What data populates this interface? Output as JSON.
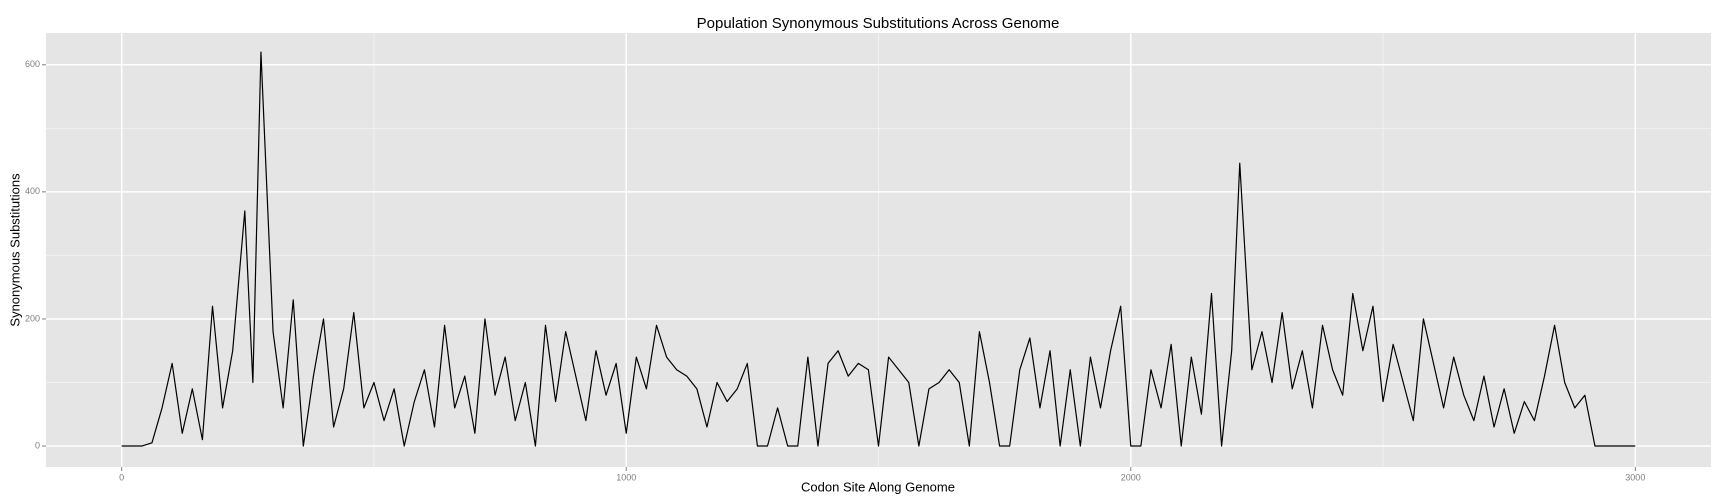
{
  "chart_data": {
    "type": "line",
    "title": "Population Synonymous Substitutions Across Genome",
    "x_label": "Codon Site Along Genome",
    "y_label": "Synonymous Substitutions",
    "x": [
      0,
      20,
      40,
      60,
      80,
      100,
      120,
      140,
      160,
      180,
      200,
      220,
      244,
      260,
      276,
      300,
      320,
      340,
      360,
      380,
      400,
      420,
      440,
      460,
      480,
      500,
      520,
      540,
      560,
      580,
      600,
      620,
      640,
      660,
      680,
      700,
      720,
      740,
      760,
      780,
      800,
      820,
      840,
      860,
      880,
      900,
      920,
      940,
      960,
      980,
      1000,
      1020,
      1040,
      1060,
      1080,
      1100,
      1120,
      1140,
      1160,
      1180,
      1200,
      1220,
      1240,
      1260,
      1280,
      1300,
      1320,
      1340,
      1360,
      1380,
      1400,
      1420,
      1440,
      1460,
      1480,
      1500,
      1520,
      1540,
      1560,
      1580,
      1600,
      1620,
      1640,
      1660,
      1680,
      1700,
      1720,
      1740,
      1760,
      1780,
      1800,
      1820,
      1840,
      1860,
      1880,
      1900,
      1920,
      1940,
      1960,
      1980,
      2000,
      2020,
      2040,
      2060,
      2080,
      2100,
      2120,
      2140,
      2160,
      2180,
      2200,
      2216,
      2240,
      2260,
      2280,
      2300,
      2320,
      2340,
      2360,
      2380,
      2400,
      2420,
      2440,
      2460,
      2480,
      2500,
      2520,
      2540,
      2560,
      2580,
      2600,
      2620,
      2640,
      2660,
      2680,
      2700,
      2720,
      2740,
      2760,
      2780,
      2800,
      2820,
      2840,
      2860,
      2880,
      2900,
      2920,
      2940,
      2960,
      2980,
      3000
    ],
    "values": [
      0,
      0,
      0,
      5,
      60,
      130,
      20,
      90,
      10,
      220,
      60,
      150,
      370,
      100,
      620,
      180,
      60,
      230,
      0,
      110,
      200,
      30,
      90,
      210,
      60,
      100,
      40,
      90,
      0,
      70,
      120,
      30,
      190,
      60,
      110,
      20,
      200,
      80,
      140,
      40,
      100,
      0,
      190,
      70,
      180,
      110,
      40,
      150,
      80,
      130,
      20,
      140,
      90,
      190,
      140,
      120,
      110,
      90,
      30,
      100,
      70,
      90,
      130,
      0,
      0,
      60,
      0,
      0,
      140,
      0,
      130,
      150,
      110,
      130,
      120,
      0,
      140,
      120,
      100,
      0,
      90,
      100,
      120,
      100,
      0,
      180,
      100,
      0,
      0,
      120,
      170,
      60,
      150,
      0,
      120,
      0,
      140,
      60,
      150,
      220,
      0,
      0,
      120,
      60,
      160,
      0,
      140,
      50,
      240,
      0,
      150,
      445,
      120,
      180,
      100,
      210,
      90,
      150,
      60,
      190,
      120,
      80,
      240,
      150,
      220,
      70,
      160,
      100,
      40,
      200,
      130,
      60,
      140,
      80,
      40,
      110,
      30,
      90,
      20,
      70,
      40,
      110,
      190,
      100,
      60,
      80,
      0,
      0,
      0,
      0,
      0
    ],
    "color": "#000000",
    "xlim": [
      -150,
      3150
    ],
    "ylim": [
      -33,
      650
    ],
    "xticks": [
      0,
      1000,
      2000,
      3000
    ],
    "yticks": [
      0,
      200,
      400,
      600
    ],
    "grid": true
  }
}
